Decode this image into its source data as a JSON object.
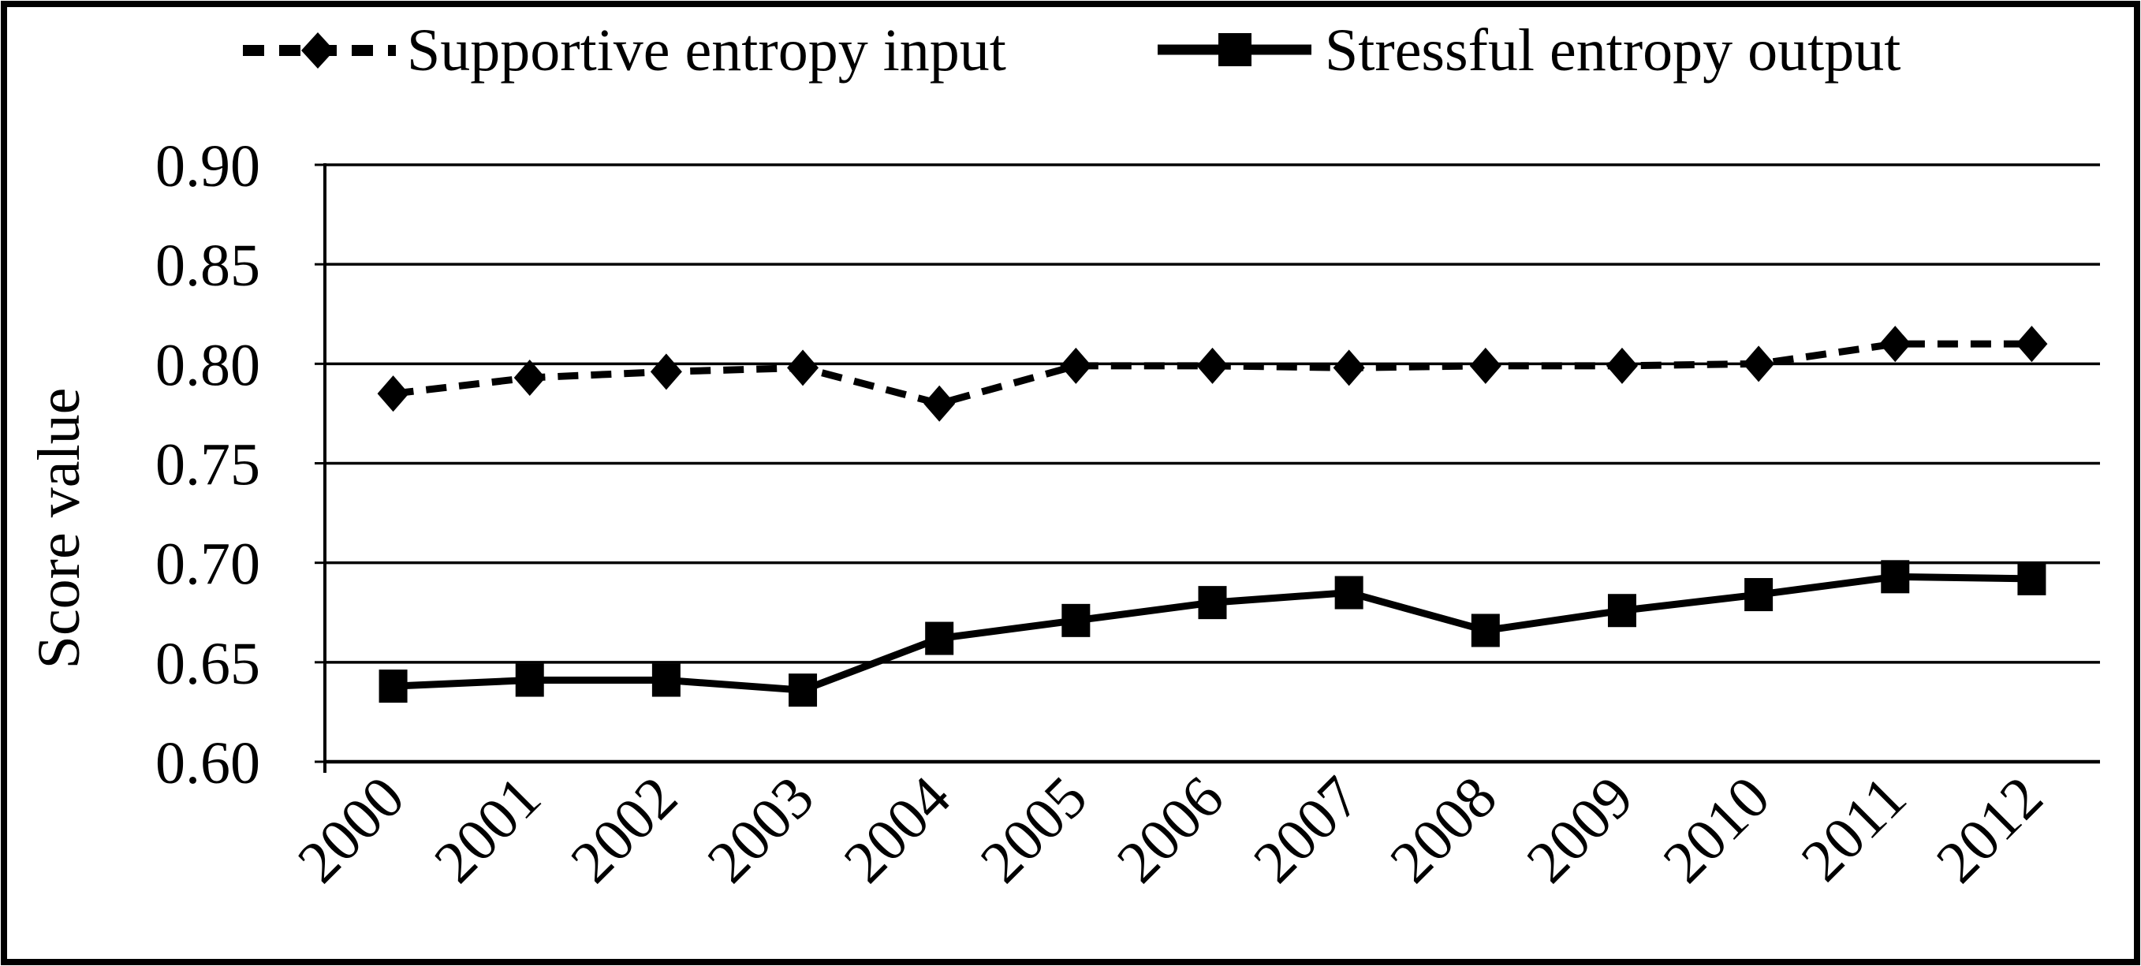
{
  "figure": {
    "background": "#ffffff",
    "border_color": "#000000",
    "ink_color": "#000000"
  },
  "legend": {
    "position": "top",
    "items": [
      {
        "label": "Supportive entropy input",
        "marker": "diamond",
        "line_style": "dashed"
      },
      {
        "label": "Stressful entropy output",
        "marker": "square",
        "line_style": "solid"
      }
    ]
  },
  "chart_data": {
    "type": "line",
    "title": "",
    "xlabel": "",
    "ylabel": "Score value",
    "ylim": [
      0.6,
      0.9
    ],
    "ytick_step": 0.05,
    "ytick_labels": [
      "0.90",
      "0.85",
      "0.80",
      "0.75",
      "0.70",
      "0.65",
      "0.60"
    ],
    "ytick_values": [
      0.9,
      0.85,
      0.8,
      0.75,
      0.7,
      0.65,
      0.6
    ],
    "grid": "horizontal",
    "legend_position": "top",
    "x_label_rotation_deg": -45,
    "categories": [
      "2000",
      "2001",
      "2002",
      "2003",
      "2004",
      "2005",
      "2006",
      "2007",
      "2008",
      "2009",
      "2010",
      "2011",
      "2012"
    ],
    "series": [
      {
        "name": "Supportive entropy input",
        "marker": "diamond",
        "line": "dashed",
        "color": "#000000",
        "values": [
          0.785,
          0.793,
          0.796,
          0.798,
          0.78,
          0.799,
          0.799,
          0.798,
          0.799,
          0.799,
          0.8,
          0.81,
          0.81
        ]
      },
      {
        "name": "Stressful entropy output",
        "marker": "square",
        "line": "solid",
        "color": "#000000",
        "values": [
          0.638,
          0.641,
          0.641,
          0.636,
          0.662,
          0.671,
          0.68,
          0.685,
          0.666,
          0.676,
          0.684,
          0.693,
          0.692
        ]
      }
    ]
  }
}
